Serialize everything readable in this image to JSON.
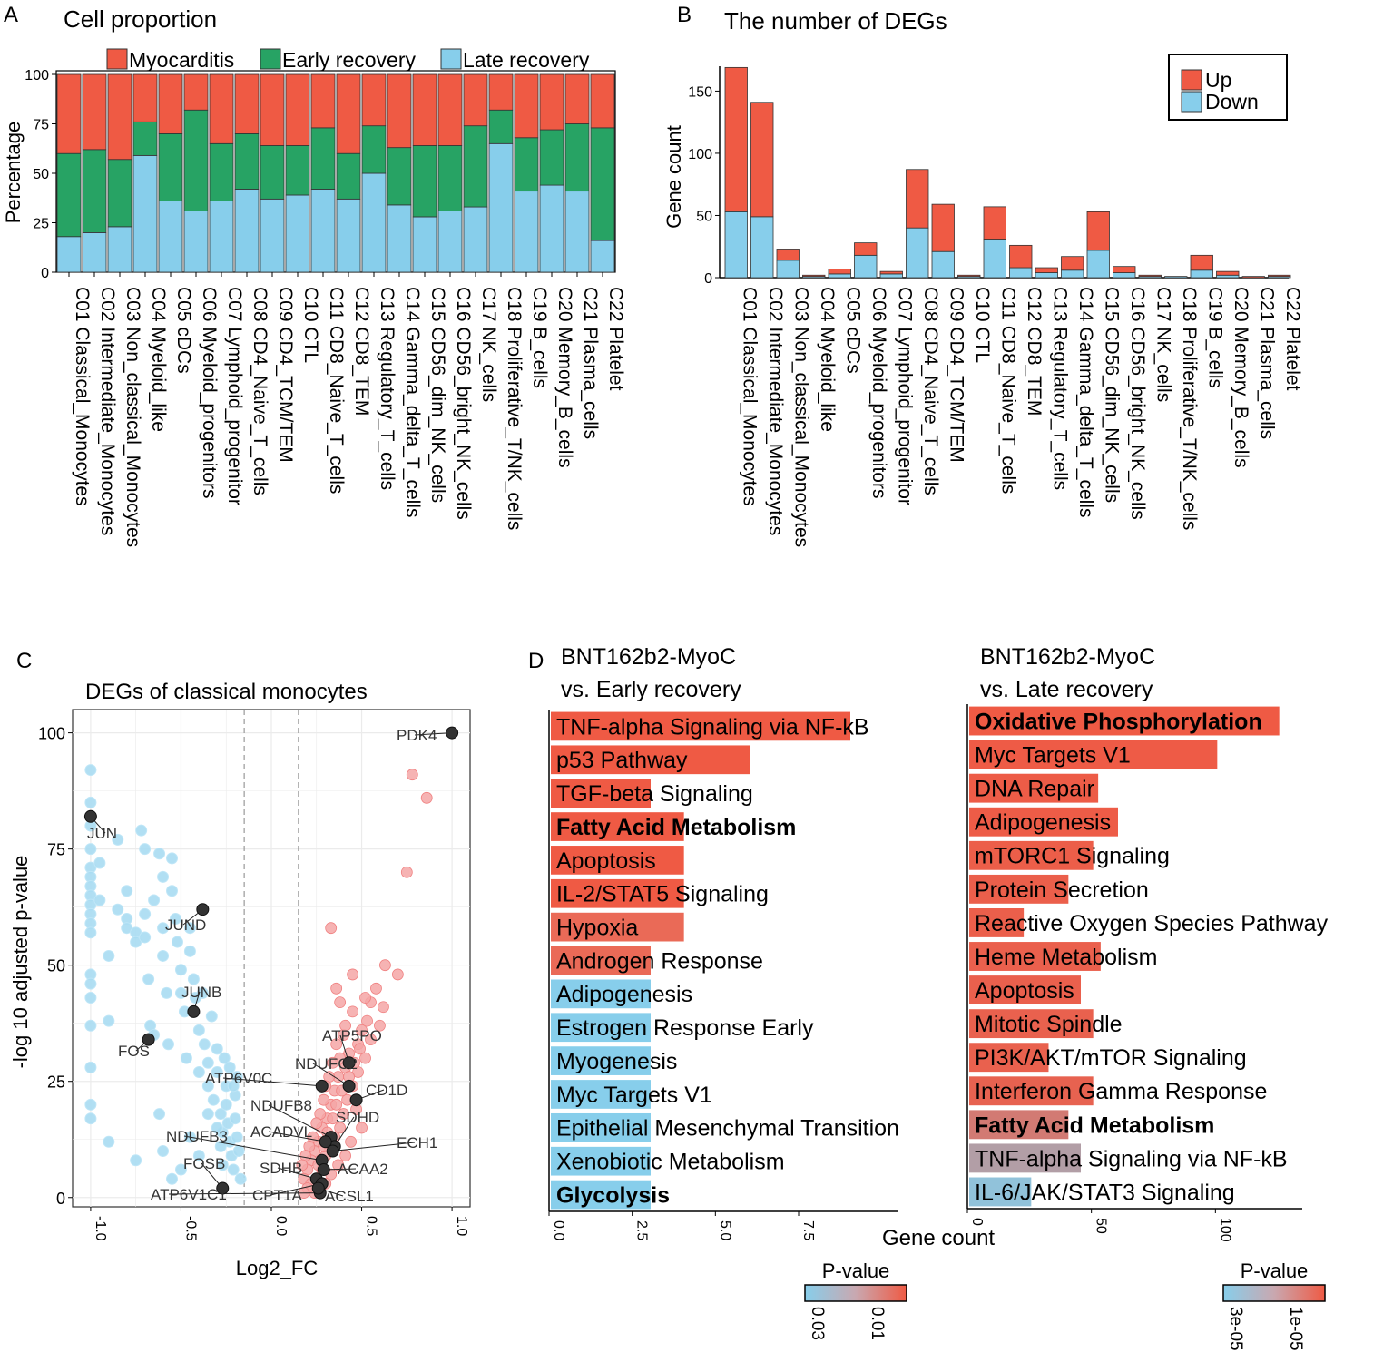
{
  "colors": {
    "myocarditis": "#ef5a44",
    "early": "#27a364",
    "late": "#87ceeb",
    "up": "#ef5a44",
    "down": "#87ceeb",
    "volcano_up": "#f4a6a6",
    "volcano_down": "#a8dcf2",
    "highlight": "#333333",
    "pval_low": "#ef5a44",
    "pval_high": "#87ceeb"
  },
  "panels": {
    "a": {
      "letter": "A",
      "title": "Cell proportion"
    },
    "b": {
      "letter": "B",
      "title": "The number of DEGs"
    },
    "c": {
      "letter": "C",
      "title": "DEGs of classical monocytes"
    },
    "d": {
      "letter": "D",
      "title_left_1": "BNT162b2-MyoC",
      "title_left_2": "vs. Early recovery",
      "title_right_1": "BNT162b2-MyoC",
      "title_right_2": "vs. Late recovery",
      "xlabel": "Gene count",
      "legend_title": "P-value"
    }
  },
  "chart_data": [
    {
      "id": "A",
      "type": "bar",
      "stacked": true,
      "title": "Cell proportion",
      "ylabel": "Percentage",
      "xlabel": "",
      "ylim": [
        0,
        100
      ],
      "yticks": [
        "0",
        "25",
        "50",
        "75",
        "100"
      ],
      "legend": [
        "Myocarditis",
        "Early recovery",
        "Late recovery"
      ],
      "categories": [
        "C01 Classical_Monocytes",
        "C02 Intermediate_Monocytes",
        "C03 Non_classical_Monocytes",
        "C04 Myeloid_like",
        "C05 cDCs",
        "C06 Myeloid_progenitors",
        "C07 Lymphoid_progenitor",
        "C08 CD4_Naive_T_cells",
        "C09 CD4_TCM/TEM",
        "C10 CTL",
        "C11 CD8_Naive_T_cells",
        "C12 CD8_TEM",
        "C13 Regulatory_T_cells",
        "C14 Gamma_delta_T_cells",
        "C15 CD56_dim_NK_cells",
        "C16 CD56_bright_NK_cells",
        "C17 NK_cells",
        "C18 Proliferative_T/NK_cells",
        "C19 B_cells",
        "C20 Memory_B_cells",
        "C21 Plasma_cells",
        "C22 Platelet"
      ],
      "series": [
        {
          "name": "Late recovery",
          "values": [
            18,
            20,
            23,
            59,
            36,
            31,
            36,
            42,
            37,
            39,
            42,
            37,
            50,
            34,
            28,
            31,
            33,
            65,
            41,
            44,
            41,
            16
          ]
        },
        {
          "name": "Early recovery",
          "values": [
            42,
            42,
            34,
            17,
            34,
            51,
            29,
            28,
            27,
            25,
            31,
            23,
            24,
            29,
            36,
            33,
            41,
            17,
            27,
            28,
            34,
            57
          ]
        },
        {
          "name": "Myocarditis",
          "values": [
            40,
            38,
            43,
            24,
            30,
            18,
            35,
            30,
            36,
            36,
            27,
            40,
            26,
            37,
            36,
            36,
            26,
            18,
            32,
            28,
            25,
            27
          ]
        }
      ]
    },
    {
      "id": "B",
      "type": "bar",
      "stacked": true,
      "title": "The number of DEGs",
      "ylabel": "Gene count",
      "xlabel": "",
      "ylim": [
        0,
        170
      ],
      "yticks": [
        "0",
        "50",
        "100",
        "150"
      ],
      "legend": [
        "Up",
        "Down"
      ],
      "categories": [
        "C01 Classical_Monocytes",
        "C02 Intermediate_Monocytes",
        "C03 Non_classical_Monocytes",
        "C04 Myeloid_like",
        "C05 cDCs",
        "C06 Myeloid_progenitors",
        "C07 Lymphoid_progenitor",
        "C08 CD4_Naive_T_cells",
        "C09 CD4_TCM/TEM",
        "C10 CTL",
        "C11 CD8_Naive_T_cells",
        "C12 CD8_TEM",
        "C13 Regulatory_T_cells",
        "C14 Gamma_delta_T_cells",
        "C15 CD56_dim_NK_cells",
        "C16 CD56_bright_NK_cells",
        "C17 NK_cells",
        "C18 Proliferative_T/NK_cells",
        "C19 B_cells",
        "C20 Memory_B_cells",
        "C21 Plasma_cells",
        "C22 Platelet"
      ],
      "series": [
        {
          "name": "Down",
          "values": [
            53,
            49,
            14,
            1,
            3,
            18,
            3,
            40,
            21,
            1,
            31,
            8,
            4,
            6,
            22,
            4,
            1,
            1,
            6,
            2,
            0,
            1
          ]
        },
        {
          "name": "Up",
          "values": [
            116,
            92,
            9,
            1,
            4,
            10,
            2,
            47,
            38,
            1,
            26,
            18,
            4,
            11,
            31,
            5,
            1,
            0,
            12,
            3,
            1,
            1
          ]
        }
      ]
    },
    {
      "id": "C",
      "type": "scatter",
      "title": "DEGs of classical monocytes",
      "xlabel": "Log2_FC",
      "ylabel": "-log 10 adjusted p-value",
      "xlim": [
        -1.1,
        1.1
      ],
      "ylim": [
        -2,
        105
      ],
      "xticks": [
        "-1.0",
        "-0.5",
        "0.0",
        "0.5",
        "1.0"
      ],
      "yticks": [
        "0",
        "25",
        "50",
        "75",
        "100"
      ],
      "thresholds": [
        -0.15,
        0.15
      ],
      "down_points": [
        [
          -1,
          92
        ],
        [
          -1,
          85
        ],
        [
          -1,
          80
        ],
        [
          -1,
          75
        ],
        [
          -1,
          71
        ],
        [
          -1,
          69
        ],
        [
          -1,
          67
        ],
        [
          -1,
          65
        ],
        [
          -1,
          63
        ],
        [
          -1,
          61
        ],
        [
          -1,
          59
        ],
        [
          -1,
          57
        ],
        [
          -1,
          48
        ],
        [
          -1,
          46
        ],
        [
          -1,
          43
        ],
        [
          -1,
          37
        ],
        [
          -1,
          28
        ],
        [
          -1,
          20
        ],
        [
          -1,
          17
        ],
        [
          -0.95,
          72
        ],
        [
          -0.95,
          64
        ],
        [
          -0.9,
          52
        ],
        [
          -0.9,
          38
        ],
        [
          -0.9,
          12
        ],
        [
          -0.85,
          77
        ],
        [
          -0.85,
          62
        ],
        [
          -0.8,
          66
        ],
        [
          -0.8,
          60
        ],
        [
          -0.8,
          58
        ],
        [
          -0.75,
          57
        ],
        [
          -0.75,
          55
        ],
        [
          -0.75,
          8
        ],
        [
          -0.72,
          79
        ],
        [
          -0.7,
          75
        ],
        [
          -0.7,
          61
        ],
        [
          -0.7,
          56
        ],
        [
          -0.68,
          47
        ],
        [
          -0.67,
          37
        ],
        [
          -0.65,
          64
        ],
        [
          -0.65,
          35
        ],
        [
          -0.62,
          74
        ],
        [
          -0.6,
          69
        ],
        [
          -0.6,
          58
        ],
        [
          -0.6,
          52
        ],
        [
          -0.58,
          44
        ],
        [
          -0.57,
          33
        ],
        [
          -0.55,
          73
        ],
        [
          -0.55,
          66
        ],
        [
          -0.53,
          60
        ],
        [
          -0.52,
          55
        ],
        [
          -0.5,
          49
        ],
        [
          -0.5,
          44
        ],
        [
          -0.48,
          40
        ],
        [
          -0.47,
          30
        ],
        [
          -0.45,
          58
        ],
        [
          -0.45,
          53
        ],
        [
          -0.43,
          47
        ],
        [
          -0.42,
          43
        ],
        [
          -0.4,
          36
        ],
        [
          -0.4,
          27
        ],
        [
          -0.38,
          44
        ],
        [
          -0.37,
          33
        ],
        [
          -0.35,
          29
        ],
        [
          -0.35,
          24
        ],
        [
          -0.33,
          39
        ],
        [
          -0.32,
          21
        ],
        [
          -0.3,
          32
        ],
        [
          -0.3,
          27
        ],
        [
          -0.28,
          18
        ],
        [
          -0.27,
          14
        ],
        [
          -0.26,
          30
        ],
        [
          -0.25,
          24
        ],
        [
          -0.25,
          20
        ],
        [
          -0.24,
          16
        ],
        [
          -0.23,
          12
        ],
        [
          -0.22,
          9
        ],
        [
          -0.21,
          6
        ],
        [
          -0.2,
          22
        ],
        [
          -0.2,
          17
        ],
        [
          -0.19,
          13
        ],
        [
          -0.18,
          10
        ],
        [
          -0.17,
          4
        ],
        [
          -0.3,
          15
        ],
        [
          -0.28,
          11
        ],
        [
          -0.27,
          7
        ],
        [
          -0.35,
          18
        ],
        [
          -0.4,
          9
        ],
        [
          -0.45,
          13
        ],
        [
          -0.5,
          6
        ],
        [
          -0.55,
          4
        ],
        [
          -0.6,
          10
        ],
        [
          -0.62,
          18
        ],
        [
          -0.23,
          28
        ],
        [
          -0.21,
          24
        ],
        [
          -0.19,
          26
        ]
      ],
      "up_points": [
        [
          0.78,
          91
        ],
        [
          0.86,
          86
        ],
        [
          0.75,
          70
        ],
        [
          0.33,
          58
        ],
        [
          0.63,
          50
        ],
        [
          0.7,
          48
        ],
        [
          0.58,
          45
        ],
        [
          0.55,
          42
        ],
        [
          0.53,
          38
        ],
        [
          0.5,
          36
        ],
        [
          0.48,
          33
        ],
        [
          0.45,
          40
        ],
        [
          0.43,
          31
        ],
        [
          0.41,
          28
        ],
        [
          0.4,
          35
        ],
        [
          0.38,
          30
        ],
        [
          0.37,
          26
        ],
        [
          0.36,
          33
        ],
        [
          0.35,
          23
        ],
        [
          0.34,
          29
        ],
        [
          0.33,
          20
        ],
        [
          0.32,
          26
        ],
        [
          0.31,
          17
        ],
        [
          0.3,
          24
        ],
        [
          0.29,
          21
        ],
        [
          0.28,
          15
        ],
        [
          0.27,
          18
        ],
        [
          0.26,
          12
        ],
        [
          0.25,
          16
        ],
        [
          0.24,
          10
        ],
        [
          0.23,
          13
        ],
        [
          0.22,
          8
        ],
        [
          0.21,
          11
        ],
        [
          0.2,
          6
        ],
        [
          0.19,
          9
        ],
        [
          0.18,
          4
        ],
        [
          0.17,
          7
        ],
        [
          0.25,
          4
        ],
        [
          0.28,
          6
        ],
        [
          0.3,
          9
        ],
        [
          0.32,
          11
        ],
        [
          0.35,
          13
        ],
        [
          0.38,
          15
        ],
        [
          0.4,
          18
        ],
        [
          0.42,
          21
        ],
        [
          0.45,
          24
        ],
        [
          0.48,
          27
        ],
        [
          0.52,
          30
        ],
        [
          0.55,
          34
        ],
        [
          0.6,
          37
        ],
        [
          0.62,
          41
        ],
        [
          0.47,
          19
        ],
        [
          0.5,
          15
        ],
        [
          0.44,
          12
        ],
        [
          0.41,
          9
        ],
        [
          0.37,
          7
        ],
        [
          0.33,
          5
        ],
        [
          0.3,
          3
        ],
        [
          0.27,
          2
        ],
        [
          0.24,
          1
        ],
        [
          0.22,
          3
        ],
        [
          0.2,
          2
        ],
        [
          0.18,
          1
        ],
        [
          0.26,
          7
        ],
        [
          0.29,
          11
        ],
        [
          0.31,
          14
        ],
        [
          0.34,
          17
        ],
        [
          0.36,
          20
        ],
        [
          0.39,
          23
        ],
        [
          0.43,
          26
        ],
        [
          0.46,
          29
        ],
        [
          0.49,
          32
        ],
        [
          0.41,
          37
        ],
        [
          0.38,
          42
        ],
        [
          0.36,
          45
        ],
        [
          0.45,
          48
        ],
        [
          0.52,
          43
        ]
      ],
      "labeled_genes": [
        {
          "name": "PDK4",
          "x": 1.0,
          "y": 100
        },
        {
          "name": "JUN",
          "x": -1.0,
          "y": 82
        },
        {
          "name": "JUND",
          "x": -0.38,
          "y": 62
        },
        {
          "name": "JUNB",
          "x": -0.43,
          "y": 40
        },
        {
          "name": "FOS",
          "x": -0.68,
          "y": 34
        },
        {
          "name": "FOSB",
          "x": -0.27,
          "y": 2
        },
        {
          "name": "ATP5PO",
          "x": 0.43,
          "y": 29
        },
        {
          "name": "NDUFC2",
          "x": 0.43,
          "y": 24
        },
        {
          "name": "ATP6V0C",
          "x": 0.28,
          "y": 24
        },
        {
          "name": "CD1D",
          "x": 0.47,
          "y": 21
        },
        {
          "name": "NDUFB8",
          "x": 0.33,
          "y": 13
        },
        {
          "name": "SDHD",
          "x": 0.35,
          "y": 11
        },
        {
          "name": "NDUFB3",
          "x": 0.28,
          "y": 8
        },
        {
          "name": "ACADVL",
          "x": 0.3,
          "y": 12
        },
        {
          "name": "ECH1",
          "x": 0.34,
          "y": 10
        },
        {
          "name": "SDHB",
          "x": 0.25,
          "y": 4
        },
        {
          "name": "ACAA2",
          "x": 0.29,
          "y": 6
        },
        {
          "name": "ATP6V1C1",
          "x": 0.27,
          "y": 1
        },
        {
          "name": "CPT1A",
          "x": 0.28,
          "y": 3
        },
        {
          "name": "ACSL1",
          "x": 0.26,
          "y": 2
        }
      ]
    },
    {
      "id": "D-left",
      "type": "bar",
      "orientation": "horizontal",
      "title": "BNT162b2-MyoC vs. Early recovery",
      "xlabel": "Gene count",
      "xlim": [
        0,
        10.5
      ],
      "xticks": [
        "0.0",
        "2.5",
        "5.0",
        "7.5"
      ],
      "legend_title": "P-value",
      "legend_ticks": [
        "0.03",
        "0.01"
      ],
      "categories": [
        "TNF-alpha Signaling via NF-kB",
        "p53 Pathway",
        "TGF-beta Signaling",
        "Fatty Acid Metabolism",
        "Apoptosis",
        "IL-2/STAT5 Signaling",
        "Hypoxia",
        "Androgen Response",
        "Adipogenesis",
        "Estrogen Response Early",
        "Myogenesis",
        "Myc Targets V1",
        "Epithelial Mesenchymal Transition",
        "Xenobiotic Metabolism",
        "Glycolysis"
      ],
      "values": [
        9,
        6,
        3,
        4,
        4,
        4,
        4,
        3,
        3,
        3,
        3,
        3,
        3,
        3,
        3
      ],
      "pvalues": [
        0.002,
        0.003,
        0.003,
        0.004,
        0.005,
        0.006,
        0.008,
        0.01,
        0.03,
        0.03,
        0.03,
        0.03,
        0.03,
        0.03,
        0.03
      ],
      "bold": [
        false,
        false,
        false,
        true,
        false,
        false,
        false,
        false,
        false,
        false,
        false,
        false,
        false,
        false,
        true
      ]
    },
    {
      "id": "D-right",
      "type": "bar",
      "orientation": "horizontal",
      "title": "BNT162b2-MyoC vs. Late recovery",
      "xlabel": "Gene count",
      "xlim": [
        0,
        135
      ],
      "xticks": [
        "0",
        "50",
        "100"
      ],
      "legend_title": "P-value",
      "legend_ticks": [
        "3e-05",
        "1e-05"
      ],
      "categories": [
        "Oxidative Phosphorylation",
        "Myc Targets V1",
        "DNA Repair",
        "Adipogenesis",
        "mTORC1 Signaling",
        "Protein Secretion",
        "Reactive Oxygen Species Pathway",
        "Heme Metabolism",
        "Apoptosis",
        "Mitotic Spindle",
        "PI3K/AKT/mTOR  Signaling",
        "Interferon Gamma Response",
        "Fatty Acid Metabolism",
        "TNF-alpha Signaling via NF-kB",
        "IL-6/JAK/STAT3 Signaling"
      ],
      "values": [
        125,
        100,
        52,
        60,
        50,
        40,
        22,
        53,
        45,
        50,
        32,
        50,
        40,
        45,
        25
      ],
      "pvalues": [
        1e-06,
        2e-06,
        3e-06,
        3e-06,
        4e-06,
        5e-06,
        5e-06,
        6e-06,
        6e-06,
        7e-06,
        7e-06,
        8e-06,
        1e-05,
        2e-05,
        3e-05
      ],
      "bold": [
        true,
        false,
        false,
        false,
        false,
        false,
        false,
        false,
        false,
        false,
        false,
        false,
        true,
        false,
        false
      ]
    }
  ]
}
